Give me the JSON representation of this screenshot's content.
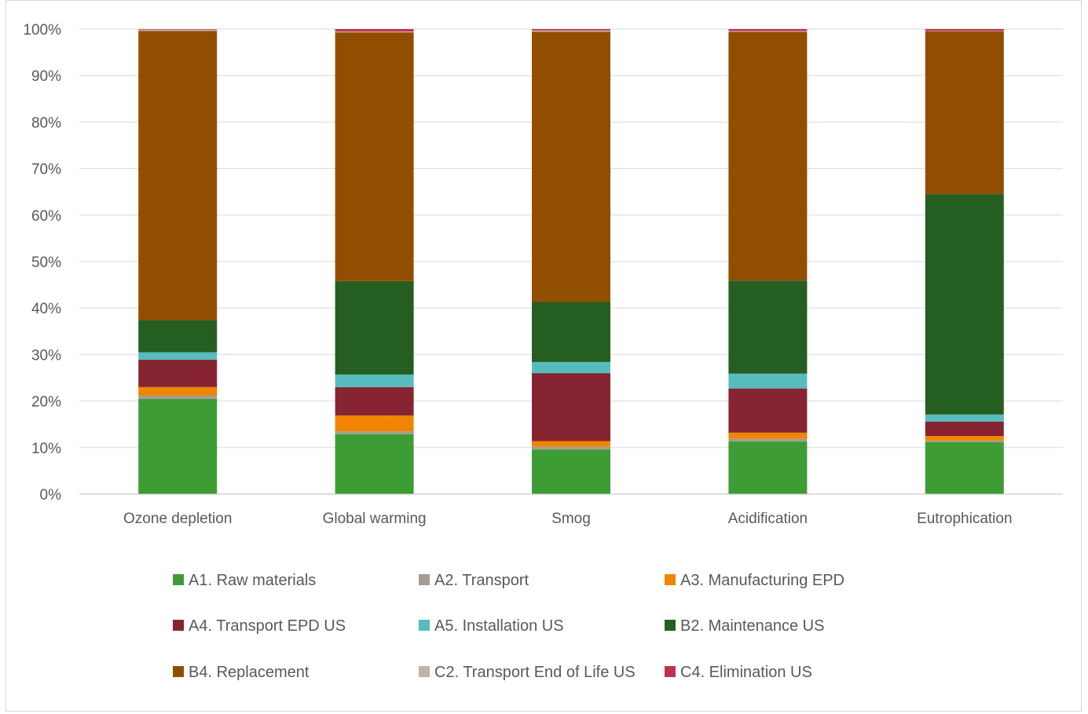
{
  "chart_data": {
    "type": "bar",
    "stacked": true,
    "normalized": true,
    "title": "",
    "xlabel": "",
    "ylabel": "",
    "ylim": [
      0,
      100
    ],
    "y_ticks": [
      "0%",
      "10%",
      "20%",
      "30%",
      "40%",
      "50%",
      "60%",
      "70%",
      "80%",
      "90%",
      "100%"
    ],
    "grid": true,
    "legend_position": "bottom",
    "categories": [
      "Ozone depletion",
      "Global warming",
      "Smog",
      "Acidification",
      "Eutrophication"
    ],
    "series": [
      {
        "name": "A1. Raw materials",
        "color": "#3e9c35",
        "values": [
          20.5,
          12.9,
          9.6,
          11.3,
          11.2
        ]
      },
      {
        "name": "A2. Transport",
        "color": "#a89c92",
        "values": [
          0.7,
          0.6,
          0.6,
          0.6,
          0.3
        ]
      },
      {
        "name": "A3. Manufacturing EPD",
        "color": "#f28500",
        "values": [
          1.8,
          3.4,
          1.2,
          1.3,
          1.0
        ]
      },
      {
        "name": "A4. Transport EPD US",
        "color": "#862432",
        "values": [
          5.9,
          6.1,
          14.6,
          9.5,
          3.1
        ]
      },
      {
        "name": "A5. Installation US",
        "color": "#56bcbc",
        "values": [
          1.6,
          2.7,
          2.4,
          3.2,
          1.5
        ]
      },
      {
        "name": "B2. Maintenance US",
        "color": "#255e21",
        "values": [
          6.9,
          20.1,
          12.9,
          20.0,
          47.4
        ]
      },
      {
        "name": "B4. Replacement",
        "color": "#924e00",
        "values": [
          62.2,
          53.5,
          58.1,
          53.5,
          35.0
        ]
      },
      {
        "name": "C2. Transport End of Life US",
        "color": "#c0b2a6",
        "values": [
          0.3,
          0.2,
          0.3,
          0.2,
          0.1
        ]
      },
      {
        "name": "C4. Elimination US",
        "color": "#c0314f",
        "values": [
          0.1,
          0.5,
          0.3,
          0.4,
          0.4
        ]
      }
    ]
  },
  "colors": {
    "gridline": "#d9d9d9",
    "axis_line": "#bfbfbf",
    "text": "#595959",
    "border": "#d9d9d9"
  }
}
